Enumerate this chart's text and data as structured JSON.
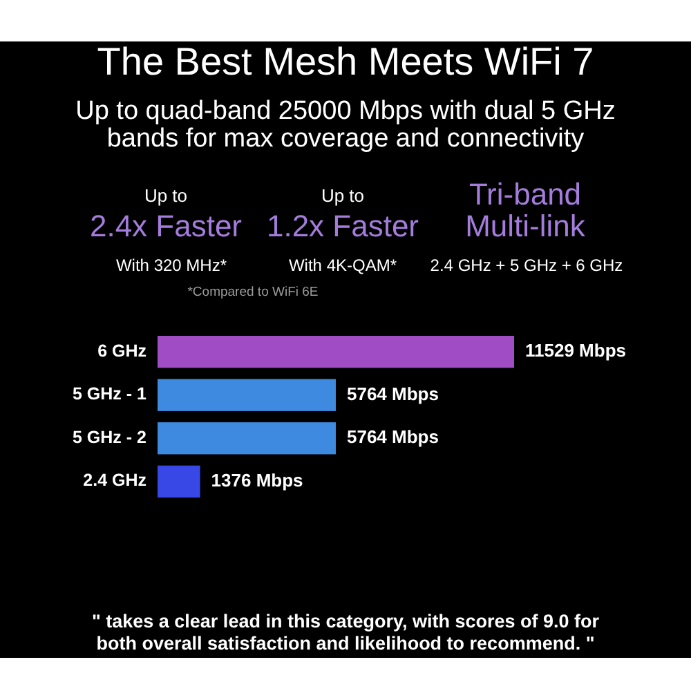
{
  "chart_data": {
    "type": "bar",
    "orientation": "horizontal",
    "title": "The Best Mesh Meets WiFi 7",
    "subtitle": "Up to quad-band 25000 Mbps with dual 5 GHz bands for max coverage and connectivity",
    "categories": [
      "6 GHz",
      "5 GHz - 1",
      "5 GHz - 2",
      "2.4 GHz"
    ],
    "values": [
      11529,
      5764,
      5764,
      1376
    ],
    "colors": [
      "#a04cc4",
      "#3d8ae0",
      "#3d8ae0",
      "#3848e6"
    ],
    "value_labels": [
      "11529 Mbps",
      "5764 Mbps",
      "5764 Mbps",
      "1376 Mbps"
    ],
    "tick_labels": "y",
    "annotations": [
      "Up to",
      "2.4x Faster",
      "With 320 MHz*",
      "Up to",
      "1.2x Faster",
      "With 4K-QAM*",
      "Tri-band Multi-link",
      "2.4 GHz + 5 GHz + 6 GHz",
      "*Compared to WiFi 6E",
      "\" takes a clear lead in this category, with scores of 9.0 for both overall satisfaction and likelihood to recommend. \""
    ]
  }
}
